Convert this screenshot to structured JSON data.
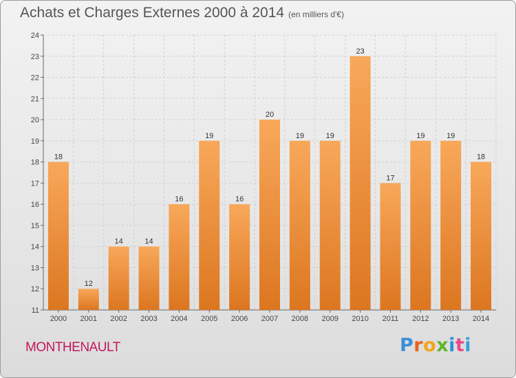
{
  "title": "Achats et Charges Externes 2000 à 2014",
  "unit_label": "(en milliers d'€)",
  "commune": "MONTHENAULT",
  "logo": {
    "text": [
      "P",
      "r",
      "o",
      "x",
      "i",
      "t",
      "i"
    ],
    "colors": [
      "#3a8fd6",
      "#e8621a",
      "#f2a51a",
      "#5fb52a",
      "#2a8fd6",
      "#e84a8a",
      "#3aa0d6"
    ]
  },
  "colors": {
    "bar_top": "#f8a85a",
    "bar_bottom": "#dc7620",
    "commune": "#c2185b"
  },
  "chart_data": {
    "type": "bar",
    "title": "Achats et Charges Externes 2000 à 2014",
    "xlabel": "",
    "ylabel": "",
    "categories": [
      "2000",
      "2001",
      "2002",
      "2003",
      "2004",
      "2005",
      "2006",
      "2007",
      "2008",
      "2009",
      "2010",
      "2011",
      "2012",
      "2013",
      "2014"
    ],
    "values": [
      18,
      12,
      14,
      14,
      16,
      19,
      16,
      20,
      19,
      19,
      23,
      17,
      19,
      19,
      18
    ],
    "ylim": [
      11,
      24
    ],
    "yticks": [
      11,
      12,
      13,
      14,
      15,
      16,
      17,
      18,
      19,
      20,
      21,
      22,
      23,
      24
    ],
    "grid": true
  }
}
